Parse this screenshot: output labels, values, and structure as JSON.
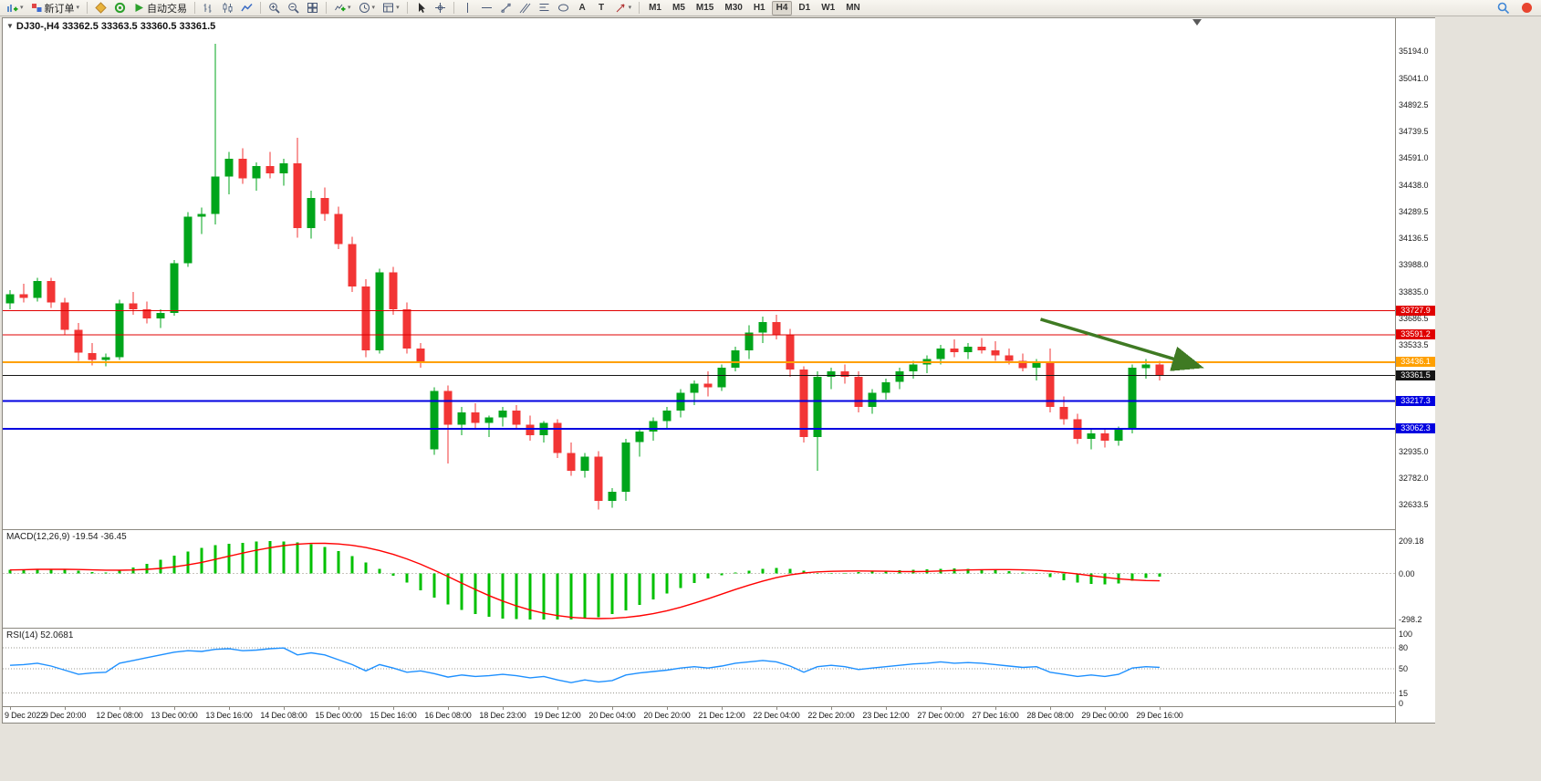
{
  "icons": {
    "caret": "▾",
    "collapse": "▼",
    "text_tool": "A",
    "label_tool": "T"
  },
  "toolbar": {
    "new_order_label": "新订单",
    "auto_trading_label": "自动交易",
    "timeframes": [
      "M1",
      "M5",
      "M15",
      "M30",
      "H1",
      "H4",
      "D1",
      "W1",
      "MN"
    ],
    "active_timeframe": "H4"
  },
  "chart": {
    "symbol_period": "DJ30-,H4",
    "ohlc": "33362.5 33363.5 33360.5 33361.5"
  },
  "chart_data": {
    "type": "candlestick",
    "symbol": "DJ30-",
    "timeframe": "H4",
    "colors": {
      "up": "#00A51B",
      "down": "#F23535",
      "macd_hist": "#00C000",
      "macd_signal": "#FF0000",
      "rsi_line": "#1E90FF",
      "arrow": "#3F7A23"
    },
    "price_axis": {
      "max": 35194.0,
      "min": 32633.5,
      "ticks": [
        35194.0,
        35041.0,
        34892.5,
        34739.5,
        34591.0,
        34438.0,
        34289.5,
        34136.5,
        33988.0,
        33835.0,
        33686.5,
        33533.5,
        32935.0,
        32782.0,
        32633.5
      ]
    },
    "hlines": [
      {
        "price": 33727.9,
        "label": "33727.9",
        "color": "#E00000",
        "width": 1
      },
      {
        "price": 33591.2,
        "label": "33591.2",
        "color": "#E00000",
        "width": 1
      },
      {
        "price": 33436.1,
        "label": "33436.1",
        "color": "#FFA000",
        "width": 2
      },
      {
        "price": 33361.5,
        "label": "33361.5",
        "color": "#151515",
        "width": 1
      },
      {
        "price": 33217.3,
        "label": "33217.3",
        "color": "#0000E0",
        "width": 2
      },
      {
        "price": 33062.3,
        "label": "33062.3",
        "color": "#0000E0",
        "width": 2
      }
    ],
    "arrow": {
      "i1": 75.3,
      "p1": 33680,
      "i2": 86.8,
      "p2": 33415
    },
    "time_labels": [
      "9 Dec 2022",
      "9 Dec 20:00",
      "12 Dec 08:00",
      "13 Dec 00:00",
      "13 Dec 16:00",
      "14 Dec 08:00",
      "15 Dec 00:00",
      "15 Dec 16:00",
      "16 Dec 08:00",
      "18 Dec 23:00",
      "19 Dec 12:00",
      "20 Dec 04:00",
      "20 Dec 20:00",
      "21 Dec 12:00",
      "22 Dec 04:00",
      "22 Dec 20:00",
      "23 Dec 12:00",
      "27 Dec 00:00",
      "27 Dec 16:00",
      "28 Dec 08:00",
      "29 Dec 00:00",
      "29 Dec 16:00"
    ],
    "candles_per_label": 4,
    "candles": [
      [
        33770,
        33845,
        33735,
        33820
      ],
      [
        33820,
        33880,
        33775,
        33800
      ],
      [
        33800,
        33915,
        33780,
        33895
      ],
      [
        33895,
        33915,
        33745,
        33775
      ],
      [
        33775,
        33800,
        33590,
        33620
      ],
      [
        33620,
        33660,
        33445,
        33490
      ],
      [
        33490,
        33545,
        33420,
        33450
      ],
      [
        33450,
        33485,
        33415,
        33465
      ],
      [
        33465,
        33790,
        33450,
        33770
      ],
      [
        33770,
        33835,
        33705,
        33735
      ],
      [
        33735,
        33780,
        33655,
        33685
      ],
      [
        33685,
        33735,
        33630,
        33715
      ],
      [
        33715,
        34015,
        33700,
        33995
      ],
      [
        33995,
        34285,
        33975,
        34260
      ],
      [
        34260,
        34310,
        34160,
        34275
      ],
      [
        34275,
        35235,
        34215,
        34485
      ],
      [
        34485,
        34625,
        34385,
        34585
      ],
      [
        34585,
        34645,
        34445,
        34475
      ],
      [
        34475,
        34565,
        34405,
        34545
      ],
      [
        34545,
        34625,
        34475,
        34505
      ],
      [
        34505,
        34585,
        34435,
        34560
      ],
      [
        34560,
        34705,
        34140,
        34195
      ],
      [
        34195,
        34405,
        34135,
        34365
      ],
      [
        34365,
        34425,
        34235,
        34275
      ],
      [
        34275,
        34315,
        34075,
        34105
      ],
      [
        34105,
        34145,
        33835,
        33865
      ],
      [
        33865,
        33905,
        33465,
        33505
      ],
      [
        33505,
        33965,
        33485,
        33945
      ],
      [
        33945,
        33975,
        33705,
        33735
      ],
      [
        33735,
        33775,
        33485,
        33515
      ],
      [
        33515,
        33545,
        33405,
        33435
      ],
      [
        32945,
        33295,
        32915,
        33275
      ],
      [
        33275,
        33305,
        32865,
        33085
      ],
      [
        33085,
        33185,
        33025,
        33155
      ],
      [
        33155,
        33205,
        33065,
        33095
      ],
      [
        33095,
        33135,
        33015,
        33125
      ],
      [
        33125,
        33185,
        33075,
        33165
      ],
      [
        33165,
        33195,
        33055,
        33085
      ],
      [
        33085,
        33135,
        32995,
        33025
      ],
      [
        33025,
        33105,
        32985,
        33095
      ],
      [
        33095,
        33115,
        32895,
        32925
      ],
      [
        32925,
        32985,
        32795,
        32825
      ],
      [
        32825,
        32925,
        32785,
        32905
      ],
      [
        32905,
        32935,
        32605,
        32655
      ],
      [
        32655,
        32725,
        32615,
        32705
      ],
      [
        32705,
        33005,
        32655,
        32985
      ],
      [
        32985,
        33065,
        32905,
        33045
      ],
      [
        33045,
        33125,
        32995,
        33105
      ],
      [
        33105,
        33185,
        33055,
        33165
      ],
      [
        33165,
        33285,
        33125,
        33265
      ],
      [
        33265,
        33335,
        33195,
        33315
      ],
      [
        33315,
        33385,
        33245,
        33295
      ],
      [
        33295,
        33425,
        33275,
        33405
      ],
      [
        33405,
        33525,
        33385,
        33505
      ],
      [
        33505,
        33645,
        33455,
        33605
      ],
      [
        33605,
        33695,
        33545,
        33665
      ],
      [
        33665,
        33705,
        33565,
        33595
      ],
      [
        33595,
        33625,
        33355,
        33395
      ],
      [
        33395,
        33415,
        32985,
        33015
      ],
      [
        33015,
        33385,
        32825,
        33355
      ],
      [
        33355,
        33405,
        33285,
        33385
      ],
      [
        33385,
        33425,
        33315,
        33355
      ],
      [
        33355,
        33385,
        33155,
        33185
      ],
      [
        33185,
        33285,
        33145,
        33265
      ],
      [
        33265,
        33345,
        33225,
        33325
      ],
      [
        33325,
        33405,
        33285,
        33385
      ],
      [
        33385,
        33445,
        33345,
        33425
      ],
      [
        33425,
        33475,
        33375,
        33455
      ],
      [
        33455,
        33535,
        33425,
        33515
      ],
      [
        33515,
        33565,
        33465,
        33495
      ],
      [
        33495,
        33545,
        33455,
        33525
      ],
      [
        33525,
        33575,
        33485,
        33505
      ],
      [
        33505,
        33555,
        33445,
        33475
      ],
      [
        33475,
        33515,
        33425,
        33445
      ],
      [
        33445,
        33485,
        33385,
        33405
      ],
      [
        33405,
        33455,
        33335,
        33435
      ],
      [
        33435,
        33515,
        33155,
        33185
      ],
      [
        33185,
        33245,
        33085,
        33115
      ],
      [
        33115,
        33145,
        32975,
        33005
      ],
      [
        33005,
        33055,
        32945,
        33035
      ],
      [
        33035,
        33065,
        32955,
        32995
      ],
      [
        32995,
        33075,
        32965,
        33055
      ],
      [
        33055,
        33425,
        33035,
        33405
      ],
      [
        33405,
        33455,
        33345,
        33425
      ],
      [
        33425,
        33445,
        33335,
        33361.5
      ]
    ],
    "macd": {
      "label": "MACD(12,26,9)",
      "values_text": "-19.54 -36.45",
      "scale_labels": [
        "209.18",
        "0.00",
        "-298.2"
      ],
      "scale_values": [
        209.18,
        0,
        -298.2
      ],
      "histogram": [
        22,
        26,
        30,
        28,
        26,
        18,
        10,
        6,
        16,
        38,
        62,
        88,
        115,
        142,
        165,
        182,
        192,
        198,
        205,
        209,
        207,
        200,
        188,
        170,
        145,
        112,
        72,
        30,
        -15,
        -60,
        -110,
        -158,
        -200,
        -235,
        -262,
        -280,
        -291,
        -296,
        -298,
        -298,
        -297,
        -298,
        -292,
        -282,
        -264,
        -238,
        -205,
        -168,
        -130,
        -94,
        -62,
        -34,
        -12,
        5,
        18,
        28,
        34,
        30,
        18,
        2,
        -4,
        4,
        10,
        14,
        17,
        20,
        23,
        26,
        29,
        31,
        29,
        26,
        21,
        14,
        6,
        -3,
        -24,
        -44,
        -60,
        -69,
        -72,
        -66,
        -48,
        -31,
        -19.54
      ]
    },
    "rsi": {
      "label": "RSI(14)",
      "value_text": "52.0681",
      "scale_labels": [
        "100",
        "80",
        "50",
        "15",
        "0"
      ],
      "scale_values": [
        100,
        80,
        50,
        15,
        0
      ],
      "levels": [
        80,
        50,
        15
      ],
      "values": [
        55,
        56,
        58,
        54,
        48,
        42,
        44,
        45,
        58,
        62,
        66,
        70,
        74,
        76,
        75,
        78,
        79,
        76,
        77,
        79,
        80,
        70,
        73,
        70,
        63,
        56,
        47,
        56,
        51,
        45,
        47,
        43,
        38,
        41,
        39,
        40,
        42,
        40,
        37,
        39,
        34,
        30,
        34,
        31,
        33,
        41,
        44,
        46,
        48,
        51,
        53,
        51,
        54,
        58,
        60,
        62,
        60,
        54,
        45,
        53,
        55,
        53,
        49,
        51,
        53,
        55,
        57,
        58,
        60,
        58,
        59,
        58,
        56,
        54,
        52,
        53,
        45,
        42,
        39,
        41,
        39,
        42,
        51,
        53,
        52.07
      ]
    }
  }
}
